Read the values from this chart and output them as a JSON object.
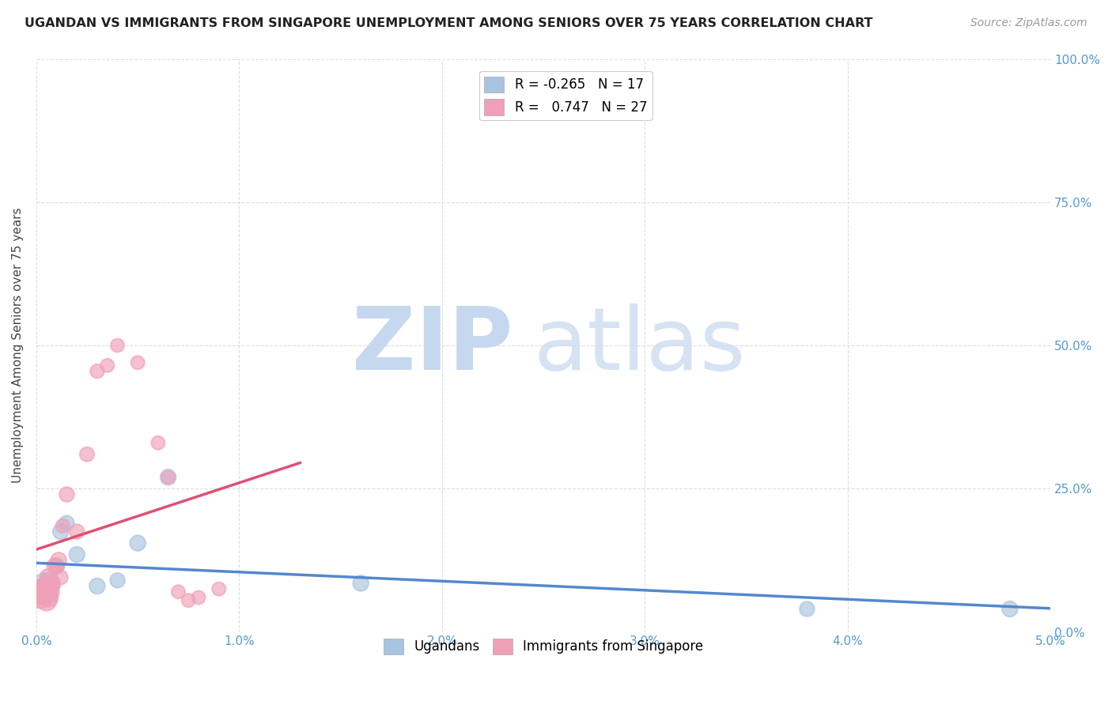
{
  "title": "UGANDAN VS IMMIGRANTS FROM SINGAPORE UNEMPLOYMENT AMONG SENIORS OVER 75 YEARS CORRELATION CHART",
  "source": "Source: ZipAtlas.com",
  "ylabel": "Unemployment Among Seniors over 75 years",
  "xlim": [
    0.0,
    0.05
  ],
  "ylim": [
    0.0,
    1.0
  ],
  "xticks": [
    0.0,
    0.01,
    0.02,
    0.03,
    0.04,
    0.05
  ],
  "xticklabels": [
    "0.0%",
    "1.0%",
    "2.0%",
    "3.0%",
    "4.0%",
    "5.0%"
  ],
  "yticks_right": [
    0.0,
    0.25,
    0.5,
    0.75,
    1.0
  ],
  "yticklabels_right": [
    "0.0%",
    "25.0%",
    "50.0%",
    "75.0%",
    "100.0%"
  ],
  "watermark_zip": "ZIP",
  "watermark_atlas": "atlas",
  "watermark_color": "#c8d8ee",
  "background_color": "#ffffff",
  "grid_color": "#dddddd",
  "ugandans_color": "#a8c4e0",
  "singapore_color": "#f0a0b8",
  "ugandans_line_color": "#5588cc",
  "singapore_line_color": "#e05070",
  "legend_R_ugandans": "-0.265",
  "legend_N_ugandans": "17",
  "legend_R_singapore": "0.747",
  "legend_N_singapore": "27",
  "ugandans_x": [
    0.0003,
    0.0004,
    0.0005,
    0.0006,
    0.0007,
    0.0008,
    0.001,
    0.0012,
    0.0015,
    0.002,
    0.003,
    0.004,
    0.005,
    0.0065,
    0.016,
    0.038,
    0.048
  ],
  "ugandans_y": [
    0.07,
    0.085,
    0.075,
    0.09,
    0.065,
    0.08,
    0.115,
    0.175,
    0.19,
    0.135,
    0.08,
    0.09,
    0.155,
    0.27,
    0.085,
    0.04,
    0.04
  ],
  "ugandans_size": [
    500,
    350,
    250,
    200,
    150,
    180,
    200,
    200,
    180,
    200,
    200,
    180,
    200,
    200,
    200,
    180,
    200
  ],
  "singapore_x": [
    0.0002,
    0.0003,
    0.0004,
    0.0005,
    0.0005,
    0.0006,
    0.0006,
    0.0007,
    0.0008,
    0.0009,
    0.001,
    0.0011,
    0.0012,
    0.0013,
    0.0015,
    0.002,
    0.0025,
    0.003,
    0.0035,
    0.004,
    0.005,
    0.006,
    0.0065,
    0.007,
    0.0075,
    0.008,
    0.009
  ],
  "singapore_y": [
    0.065,
    0.07,
    0.075,
    0.055,
    0.08,
    0.06,
    0.095,
    0.07,
    0.085,
    0.115,
    0.115,
    0.125,
    0.095,
    0.185,
    0.24,
    0.175,
    0.31,
    0.455,
    0.465,
    0.5,
    0.47,
    0.33,
    0.27,
    0.07,
    0.055,
    0.06,
    0.075
  ],
  "singapore_size": [
    600,
    500,
    400,
    350,
    300,
    300,
    250,
    250,
    200,
    200,
    180,
    200,
    170,
    160,
    180,
    180,
    170,
    160,
    150,
    150,
    150,
    150,
    150,
    150,
    150,
    150,
    150
  ],
  "singapore_line_x0": 0.0,
  "singapore_line_x1": 0.013,
  "ugandans_line_x0": 0.0,
  "ugandans_line_x1": 0.05
}
